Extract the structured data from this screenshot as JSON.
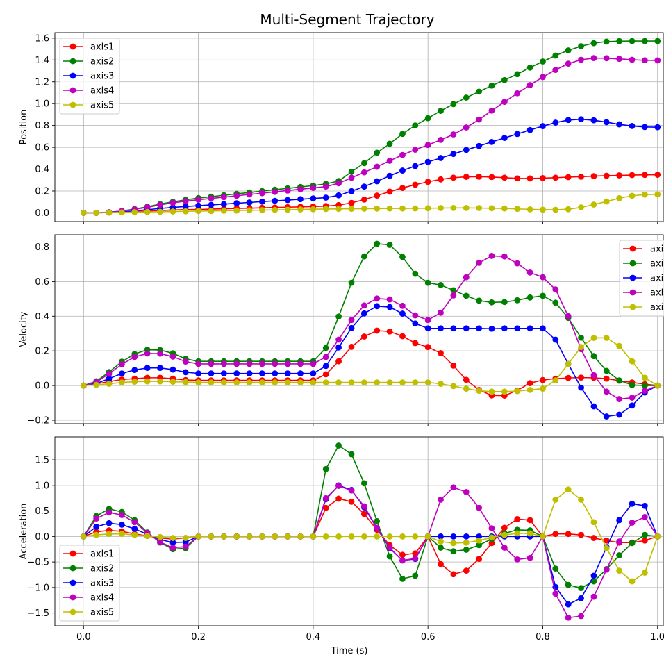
{
  "figure_title": "Multi-Segment Trajectory",
  "xlabel": "Time (s)",
  "x_ticks": [
    0.0,
    0.2,
    0.4,
    0.6,
    0.8,
    1.0
  ],
  "x_tick_labels": [
    "0.0",
    "0.2",
    "0.4",
    "0.6",
    "0.8",
    "1.0"
  ],
  "colors": {
    "axis1": "#ff0000",
    "axis2": "#008000",
    "axis3": "#0000ff",
    "axis4": "#bf00bf",
    "axis5": "#bfbf00"
  },
  "chart_data": [
    {
      "type": "line",
      "title": "",
      "xlabel": "",
      "ylabel": "Position",
      "xlim": [
        -0.05,
        1.01
      ],
      "ylim": [
        -0.08,
        1.65
      ],
      "y_ticks": [
        0.0,
        0.2,
        0.4,
        0.6,
        0.8,
        1.0,
        1.2,
        1.4,
        1.6
      ],
      "y_tick_labels": [
        "0.0",
        "0.2",
        "0.4",
        "0.6",
        "0.8",
        "1.0",
        "1.2",
        "1.4",
        "1.6"
      ],
      "grid": true,
      "legend_position": "top-left",
      "x": [
        0.0,
        0.0222,
        0.0444,
        0.0667,
        0.0889,
        0.1111,
        0.1333,
        0.1556,
        0.1778,
        0.2,
        0.2222,
        0.2444,
        0.2667,
        0.2889,
        0.3111,
        0.3333,
        0.3556,
        0.3778,
        0.4,
        0.4222,
        0.4444,
        0.4667,
        0.4889,
        0.5111,
        0.5333,
        0.5556,
        0.5778,
        0.6,
        0.6222,
        0.6444,
        0.6667,
        0.6889,
        0.7111,
        0.7333,
        0.7556,
        0.7778,
        0.8,
        0.8222,
        0.8444,
        0.8667,
        0.8889,
        0.9111,
        0.9333,
        0.9556,
        0.9778,
        1.0
      ],
      "series": [
        {
          "name": "axis1",
          "values": [
            0.0,
            0.0,
            0.003,
            0.006,
            0.011,
            0.016,
            0.021,
            0.026,
            0.029,
            0.031,
            0.034,
            0.037,
            0.04,
            0.043,
            0.046,
            0.049,
            0.052,
            0.055,
            0.058,
            0.062,
            0.071,
            0.091,
            0.121,
            0.158,
            0.194,
            0.228,
            0.258,
            0.284,
            0.306,
            0.322,
            0.33,
            0.331,
            0.328,
            0.322,
            0.316,
            0.315,
            0.318,
            0.322,
            0.327,
            0.331,
            0.336,
            0.34,
            0.343,
            0.346,
            0.348,
            0.349
          ]
        },
        {
          "name": "axis2",
          "values": [
            0.0,
            0.0,
            0.006,
            0.017,
            0.035,
            0.056,
            0.08,
            0.101,
            0.119,
            0.135,
            0.148,
            0.161,
            0.174,
            0.186,
            0.199,
            0.212,
            0.224,
            0.237,
            0.25,
            0.265,
            0.291,
            0.376,
            0.455,
            0.55,
            0.633,
            0.723,
            0.8,
            0.867,
            0.934,
            0.996,
            1.055,
            1.11,
            1.165,
            1.216,
            1.27,
            1.33,
            1.386,
            1.44,
            1.488,
            1.526,
            1.554,
            1.568,
            1.572,
            1.573,
            1.573,
            1.573
          ]
        },
        {
          "name": "axis3",
          "values": [
            0.0,
            0.0,
            0.003,
            0.008,
            0.018,
            0.029,
            0.04,
            0.05,
            0.058,
            0.066,
            0.073,
            0.08,
            0.088,
            0.095,
            0.103,
            0.11,
            0.117,
            0.125,
            0.132,
            0.139,
            0.16,
            0.198,
            0.24,
            0.289,
            0.339,
            0.387,
            0.429,
            0.466,
            0.502,
            0.539,
            0.576,
            0.612,
            0.649,
            0.686,
            0.722,
            0.758,
            0.794,
            0.826,
            0.85,
            0.857,
            0.848,
            0.83,
            0.81,
            0.795,
            0.786,
            0.784
          ]
        },
        {
          "name": "axis4",
          "values": [
            0.0,
            0.0,
            0.005,
            0.016,
            0.032,
            0.051,
            0.073,
            0.092,
            0.107,
            0.12,
            0.132,
            0.144,
            0.156,
            0.168,
            0.18,
            0.192,
            0.204,
            0.216,
            0.228,
            0.24,
            0.271,
            0.321,
            0.371,
            0.422,
            0.477,
            0.53,
            0.578,
            0.621,
            0.668,
            0.718,
            0.782,
            0.854,
            0.936,
            1.016,
            1.095,
            1.17,
            1.244,
            1.309,
            1.366,
            1.402,
            1.417,
            1.416,
            1.41,
            1.402,
            1.397,
            1.396
          ]
        },
        {
          "name": "axis5",
          "values": [
            0.0,
            0.0,
            0.002,
            0.004,
            0.006,
            0.008,
            0.01,
            0.012,
            0.014,
            0.016,
            0.017,
            0.019,
            0.021,
            0.023,
            0.025,
            0.027,
            0.029,
            0.031,
            0.033,
            0.035,
            0.036,
            0.037,
            0.038,
            0.039,
            0.04,
            0.04,
            0.041,
            0.042,
            0.044,
            0.045,
            0.045,
            0.044,
            0.042,
            0.04,
            0.036,
            0.032,
            0.029,
            0.028,
            0.033,
            0.05,
            0.076,
            0.104,
            0.134,
            0.156,
            0.167,
            0.169
          ]
        }
      ]
    },
    {
      "type": "line",
      "title": "",
      "xlabel": "",
      "ylabel": "Velocity",
      "xlim": [
        -0.05,
        1.01
      ],
      "ylim": [
        -0.22,
        0.87
      ],
      "y_ticks": [
        -0.2,
        0.0,
        0.2,
        0.4,
        0.6,
        0.8
      ],
      "y_tick_labels": [
        "−0.2",
        "0.0",
        "0.2",
        "0.4",
        "0.6",
        "0.8"
      ],
      "grid": true,
      "legend_position": "top-right",
      "x": [
        0.0,
        0.0222,
        0.0444,
        0.0667,
        0.0889,
        0.1111,
        0.1333,
        0.1556,
        0.1778,
        0.2,
        0.2222,
        0.2444,
        0.2667,
        0.2889,
        0.3111,
        0.3333,
        0.3556,
        0.3778,
        0.4,
        0.4222,
        0.4444,
        0.4667,
        0.4889,
        0.5111,
        0.5333,
        0.5556,
        0.5778,
        0.6,
        0.6222,
        0.6444,
        0.6667,
        0.6889,
        0.7111,
        0.7333,
        0.7556,
        0.7778,
        0.8,
        0.8222,
        0.8444,
        0.8667,
        0.8889,
        0.9111,
        0.9333,
        0.9556,
        0.9778,
        1.0
      ],
      "series": [
        {
          "name": "axis1",
          "values": [
            0.0,
            0.01,
            0.023,
            0.035,
            0.04,
            0.045,
            0.045,
            0.04,
            0.032,
            0.03,
            0.03,
            0.03,
            0.03,
            0.03,
            0.03,
            0.03,
            0.03,
            0.03,
            0.03,
            0.065,
            0.14,
            0.223,
            0.283,
            0.317,
            0.312,
            0.285,
            0.245,
            0.222,
            0.187,
            0.115,
            0.033,
            -0.025,
            -0.057,
            -0.058,
            -0.028,
            0.014,
            0.032,
            0.04,
            0.044,
            0.046,
            0.045,
            0.04,
            0.028,
            0.018,
            0.008,
            0.0
          ]
        },
        {
          "name": "axis2",
          "values": [
            0.0,
            0.025,
            0.078,
            0.138,
            0.182,
            0.207,
            0.205,
            0.186,
            0.154,
            0.14,
            0.14,
            0.14,
            0.14,
            0.14,
            0.14,
            0.14,
            0.14,
            0.14,
            0.14,
            0.217,
            0.398,
            0.593,
            0.745,
            0.818,
            0.812,
            0.742,
            0.645,
            0.593,
            0.58,
            0.55,
            0.518,
            0.49,
            0.48,
            0.482,
            0.492,
            0.508,
            0.518,
            0.478,
            0.39,
            0.276,
            0.17,
            0.085,
            0.03,
            0.003,
            0.0,
            0.0
          ]
        },
        {
          "name": "axis3",
          "values": [
            0.0,
            0.012,
            0.04,
            0.07,
            0.09,
            0.102,
            0.102,
            0.092,
            0.077,
            0.07,
            0.07,
            0.07,
            0.07,
            0.07,
            0.07,
            0.07,
            0.07,
            0.07,
            0.07,
            0.113,
            0.22,
            0.332,
            0.416,
            0.458,
            0.453,
            0.415,
            0.358,
            0.33,
            0.33,
            0.33,
            0.33,
            0.33,
            0.328,
            0.33,
            0.33,
            0.33,
            0.33,
            0.265,
            0.125,
            -0.012,
            -0.12,
            -0.178,
            -0.168,
            -0.115,
            -0.04,
            0.0
          ]
        },
        {
          "name": "axis4",
          "values": [
            0.0,
            0.02,
            0.068,
            0.123,
            0.165,
            0.185,
            0.184,
            0.167,
            0.138,
            0.125,
            0.125,
            0.125,
            0.125,
            0.125,
            0.125,
            0.125,
            0.125,
            0.125,
            0.125,
            0.165,
            0.265,
            0.378,
            0.462,
            0.502,
            0.497,
            0.46,
            0.405,
            0.378,
            0.42,
            0.52,
            0.625,
            0.708,
            0.748,
            0.745,
            0.705,
            0.652,
            0.625,
            0.555,
            0.4,
            0.21,
            0.06,
            -0.035,
            -0.078,
            -0.07,
            -0.03,
            0.0
          ]
        },
        {
          "name": "axis5",
          "values": [
            0.0,
            0.004,
            0.01,
            0.018,
            0.022,
            0.024,
            0.024,
            0.022,
            0.02,
            0.018,
            0.018,
            0.018,
            0.018,
            0.018,
            0.018,
            0.018,
            0.018,
            0.018,
            0.018,
            0.018,
            0.018,
            0.018,
            0.018,
            0.018,
            0.018,
            0.018,
            0.018,
            0.018,
            0.01,
            -0.003,
            -0.018,
            -0.03,
            -0.035,
            -0.035,
            -0.032,
            -0.025,
            -0.018,
            0.03,
            0.125,
            0.222,
            0.275,
            0.275,
            0.228,
            0.14,
            0.045,
            0.0
          ]
        }
      ]
    },
    {
      "type": "line",
      "title": "",
      "xlabel": "Time (s)",
      "ylabel": "Acceleration",
      "xlim": [
        -0.05,
        1.01
      ],
      "ylim": [
        -1.75,
        1.95
      ],
      "y_ticks": [
        -1.5,
        -1.0,
        -0.5,
        0.0,
        0.5,
        1.0,
        1.5
      ],
      "y_tick_labels": [
        "−1.5",
        "−1.0",
        "−0.5",
        "0.0",
        "0.5",
        "1.0",
        "1.5"
      ],
      "grid": true,
      "legend_position": "bottom-left",
      "x": [
        0.0,
        0.0222,
        0.0444,
        0.0667,
        0.0889,
        0.1111,
        0.1333,
        0.1556,
        0.1778,
        0.2,
        0.2222,
        0.2444,
        0.2667,
        0.2889,
        0.3111,
        0.3333,
        0.3556,
        0.3778,
        0.4,
        0.4222,
        0.4444,
        0.4667,
        0.4889,
        0.5111,
        0.5333,
        0.5556,
        0.5778,
        0.6,
        0.6222,
        0.6444,
        0.6667,
        0.6889,
        0.7111,
        0.7333,
        0.7556,
        0.7778,
        0.8,
        0.8222,
        0.8444,
        0.8667,
        0.8889,
        0.9111,
        0.9333,
        0.9556,
        0.9778,
        1.0
      ],
      "series": [
        {
          "name": "axis1",
          "values": [
            0.0,
            0.09,
            0.12,
            0.1,
            0.05,
            0.01,
            -0.03,
            -0.05,
            -0.03,
            0.0,
            0.0,
            0.0,
            0.0,
            0.0,
            0.0,
            0.0,
            0.0,
            0.0,
            0.0,
            0.56,
            0.74,
            0.68,
            0.44,
            0.13,
            -0.17,
            -0.36,
            -0.33,
            0.0,
            -0.54,
            -0.74,
            -0.67,
            -0.44,
            -0.13,
            0.17,
            0.34,
            0.32,
            0.0,
            0.05,
            0.05,
            0.03,
            -0.03,
            -0.08,
            -0.12,
            -0.12,
            -0.08,
            0.0
          ]
        },
        {
          "name": "axis2",
          "values": [
            0.0,
            0.4,
            0.54,
            0.48,
            0.32,
            0.08,
            -0.12,
            -0.25,
            -0.23,
            0.0,
            0.0,
            0.0,
            0.0,
            0.0,
            0.0,
            0.0,
            0.0,
            0.0,
            0.0,
            1.32,
            1.78,
            1.61,
            1.04,
            0.3,
            -0.39,
            -0.83,
            -0.77,
            0.0,
            -0.22,
            -0.29,
            -0.26,
            -0.17,
            -0.05,
            0.06,
            0.13,
            0.12,
            0.0,
            -0.63,
            -0.95,
            -1.01,
            -0.88,
            -0.64,
            -0.37,
            -0.13,
            0.03,
            0.0
          ]
        },
        {
          "name": "axis3",
          "values": [
            0.0,
            0.19,
            0.26,
            0.23,
            0.15,
            0.04,
            -0.06,
            -0.12,
            -0.11,
            0.0,
            0.0,
            0.0,
            0.0,
            0.0,
            0.0,
            0.0,
            0.0,
            0.0,
            0.0,
            0.73,
            1.0,
            0.91,
            0.57,
            0.16,
            -0.23,
            -0.47,
            -0.44,
            0.0,
            0.0,
            0.0,
            0.0,
            0.0,
            0.0,
            0.0,
            0.0,
            0.0,
            0.0,
            -0.99,
            -1.33,
            -1.21,
            -0.77,
            -0.21,
            0.32,
            0.64,
            0.6,
            0.0
          ]
        },
        {
          "name": "axis4",
          "values": [
            0.0,
            0.35,
            0.47,
            0.42,
            0.28,
            0.07,
            -0.11,
            -0.22,
            -0.2,
            0.0,
            0.0,
            0.0,
            0.0,
            0.0,
            0.0,
            0.0,
            0.0,
            0.0,
            0.0,
            0.75,
            0.99,
            0.9,
            0.59,
            0.17,
            -0.22,
            -0.47,
            -0.43,
            0.0,
            0.72,
            0.96,
            0.87,
            0.56,
            0.16,
            -0.22,
            -0.45,
            -0.42,
            0.0,
            -1.12,
            -1.59,
            -1.56,
            -1.18,
            -0.65,
            -0.1,
            0.27,
            0.38,
            0.0
          ]
        },
        {
          "name": "axis5",
          "values": [
            0.0,
            0.03,
            0.05,
            0.05,
            0.03,
            0.01,
            -0.01,
            -0.03,
            -0.03,
            0.0,
            0.0,
            0.0,
            0.0,
            0.0,
            0.0,
            0.0,
            0.0,
            0.0,
            0.0,
            0.0,
            0.0,
            0.0,
            0.0,
            0.0,
            0.0,
            0.0,
            0.0,
            0.0,
            -0.1,
            -0.13,
            -0.12,
            -0.08,
            -0.02,
            0.03,
            0.06,
            0.06,
            0.0,
            0.72,
            0.92,
            0.72,
            0.28,
            -0.23,
            -0.67,
            -0.88,
            -0.71,
            0.0
          ]
        }
      ]
    }
  ]
}
